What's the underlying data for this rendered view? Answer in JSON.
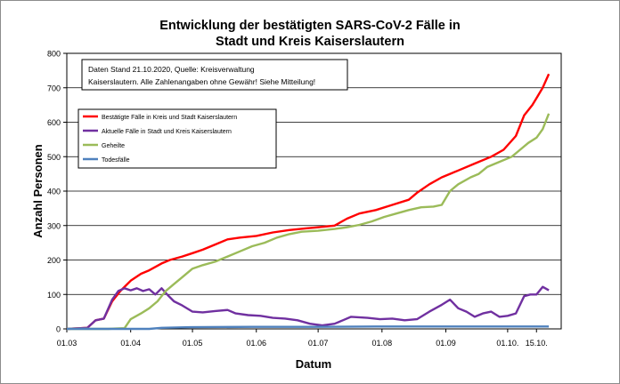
{
  "chart_data": {
    "type": "line",
    "title_lines": [
      "Entwicklung der bestätigten SARS-CoV-2 Fälle in",
      "Stadt und Kreis Kaiserslautern"
    ],
    "xlabel": "Datum",
    "ylabel": "Anzahl Personen",
    "ylim": [
      0,
      800
    ],
    "yticks": [
      0,
      100,
      200,
      300,
      400,
      500,
      600,
      700,
      800
    ],
    "x_ticks": [
      {
        "day": 0,
        "label": "01.03"
      },
      {
        "day": 31,
        "label": "01.04"
      },
      {
        "day": 61,
        "label": "01.05"
      },
      {
        "day": 92,
        "label": "01.06"
      },
      {
        "day": 122,
        "label": "01.07"
      },
      {
        "day": 153,
        "label": "01.08"
      },
      {
        "day": 184,
        "label": "01.09"
      },
      {
        "day": 214,
        "label": "01.10."
      },
      {
        "day": 228,
        "label": "15.10."
      }
    ],
    "grid": true,
    "note_lines": [
      "Daten Stand 21.10.2020, Quelle: Kreisverwaltung",
      "Kaiserslautern. Alle Zahlenangaben ohne Gewähr! Siehe Mitteilung!"
    ],
    "legend_position": "upper-left",
    "series": [
      {
        "name": "Bestätigte Fälle in Kreis und Stadt Kaiserslautern",
        "color": "#ff0000",
        "points": [
          [
            0,
            0
          ],
          [
            10,
            3
          ],
          [
            14,
            25
          ],
          [
            18,
            30
          ],
          [
            22,
            80
          ],
          [
            26,
            110
          ],
          [
            31,
            140
          ],
          [
            36,
            160
          ],
          [
            40,
            170
          ],
          [
            46,
            190
          ],
          [
            50,
            200
          ],
          [
            56,
            210
          ],
          [
            61,
            220
          ],
          [
            66,
            230
          ],
          [
            72,
            245
          ],
          [
            78,
            260
          ],
          [
            84,
            265
          ],
          [
            92,
            270
          ],
          [
            100,
            280
          ],
          [
            108,
            287
          ],
          [
            116,
            292
          ],
          [
            122,
            295
          ],
          [
            130,
            300
          ],
          [
            136,
            320
          ],
          [
            142,
            335
          ],
          [
            150,
            345
          ],
          [
            158,
            360
          ],
          [
            166,
            375
          ],
          [
            170,
            395
          ],
          [
            176,
            420
          ],
          [
            182,
            440
          ],
          [
            190,
            460
          ],
          [
            198,
            480
          ],
          [
            206,
            500
          ],
          [
            212,
            520
          ],
          [
            218,
            560
          ],
          [
            222,
            620
          ],
          [
            226,
            650
          ],
          [
            228,
            670
          ],
          [
            231,
            700
          ],
          [
            234,
            740
          ]
        ]
      },
      {
        "name": "Aktuelle Fälle in Stadt und Kreis Kaiserslautern",
        "color": "#7030a0",
        "points": [
          [
            0,
            0
          ],
          [
            10,
            3
          ],
          [
            14,
            25
          ],
          [
            18,
            30
          ],
          [
            22,
            85
          ],
          [
            25,
            110
          ],
          [
            28,
            118
          ],
          [
            31,
            112
          ],
          [
            34,
            118
          ],
          [
            37,
            110
          ],
          [
            40,
            115
          ],
          [
            43,
            100
          ],
          [
            46,
            118
          ],
          [
            49,
            98
          ],
          [
            52,
            80
          ],
          [
            56,
            68
          ],
          [
            61,
            50
          ],
          [
            66,
            48
          ],
          [
            72,
            52
          ],
          [
            78,
            55
          ],
          [
            82,
            45
          ],
          [
            88,
            40
          ],
          [
            94,
            38
          ],
          [
            100,
            32
          ],
          [
            106,
            30
          ],
          [
            112,
            25
          ],
          [
            118,
            15
          ],
          [
            124,
            10
          ],
          [
            130,
            15
          ],
          [
            134,
            25
          ],
          [
            138,
            35
          ],
          [
            146,
            32
          ],
          [
            152,
            28
          ],
          [
            158,
            30
          ],
          [
            164,
            25
          ],
          [
            170,
            28
          ],
          [
            176,
            50
          ],
          [
            182,
            70
          ],
          [
            186,
            85
          ],
          [
            190,
            60
          ],
          [
            194,
            50
          ],
          [
            198,
            35
          ],
          [
            202,
            45
          ],
          [
            206,
            50
          ],
          [
            210,
            35
          ],
          [
            214,
            38
          ],
          [
            218,
            45
          ],
          [
            222,
            95
          ],
          [
            225,
            100
          ],
          [
            228,
            100
          ],
          [
            231,
            122
          ],
          [
            234,
            112
          ]
        ]
      },
      {
        "name": "Geheilte",
        "color": "#9bbb59",
        "points": [
          [
            0,
            0
          ],
          [
            20,
            0
          ],
          [
            28,
            2
          ],
          [
            31,
            28
          ],
          [
            36,
            45
          ],
          [
            40,
            60
          ],
          [
            44,
            80
          ],
          [
            48,
            110
          ],
          [
            52,
            130
          ],
          [
            56,
            150
          ],
          [
            61,
            175
          ],
          [
            66,
            185
          ],
          [
            72,
            195
          ],
          [
            78,
            210
          ],
          [
            84,
            225
          ],
          [
            90,
            240
          ],
          [
            96,
            250
          ],
          [
            102,
            265
          ],
          [
            108,
            275
          ],
          [
            114,
            282
          ],
          [
            122,
            285
          ],
          [
            130,
            290
          ],
          [
            136,
            295
          ],
          [
            142,
            302
          ],
          [
            148,
            312
          ],
          [
            154,
            325
          ],
          [
            160,
            335
          ],
          [
            166,
            345
          ],
          [
            172,
            353
          ],
          [
            178,
            355
          ],
          [
            182,
            360
          ],
          [
            186,
            400
          ],
          [
            190,
            420
          ],
          [
            196,
            440
          ],
          [
            200,
            450
          ],
          [
            204,
            470
          ],
          [
            210,
            485
          ],
          [
            216,
            500
          ],
          [
            220,
            520
          ],
          [
            224,
            540
          ],
          [
            228,
            555
          ],
          [
            231,
            580
          ],
          [
            234,
            625
          ]
        ]
      },
      {
        "name": "Todesfälle",
        "color": "#4f81bd",
        "points": [
          [
            0,
            0
          ],
          [
            40,
            0
          ],
          [
            46,
            3
          ],
          [
            60,
            5
          ],
          [
            90,
            6
          ],
          [
            120,
            6
          ],
          [
            150,
            7
          ],
          [
            180,
            7
          ],
          [
            210,
            7
          ],
          [
            234,
            7
          ]
        ]
      }
    ]
  }
}
